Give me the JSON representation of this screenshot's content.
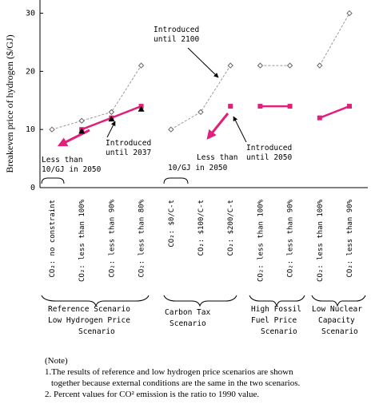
{
  "chart_data": {
    "type": "line",
    "y_label": "Breakeven price of hydrogen ($/GJ)",
    "ylim": [
      0,
      32
    ],
    "yticks": [
      0,
      10,
      20,
      30
    ],
    "categories": [
      "CO₂: no constraint",
      "CO₂: less than 100%",
      "CO₂: less than 90%",
      "CO₂: less than 80%",
      "CO₂: $0/C-t",
      "CO₂: $100/C-t",
      "CO₂: $200/C-t",
      "CO₂: less than 100%",
      "CO₂: less than 90%",
      "CO₂: less than 100%",
      "CO₂: less than 90%"
    ],
    "series": [
      {
        "color": "#999999",
        "style": "dashed",
        "marker": "diamond",
        "values": [
          10,
          11.5,
          13,
          21,
          null,
          null,
          null,
          null,
          null,
          null,
          null
        ]
      },
      {
        "color": "#999999",
        "style": "dashed",
        "marker": "diamond",
        "values": [
          null,
          null,
          null,
          null,
          10,
          13,
          21,
          null,
          null,
          null,
          null
        ]
      },
      {
        "color": "#999999",
        "style": "dashed",
        "marker": "diamond",
        "values": [
          null,
          null,
          null,
          null,
          null,
          null,
          null,
          21,
          21,
          null,
          null
        ]
      },
      {
        "color": "#999999",
        "style": "dashed",
        "marker": "diamond",
        "values": [
          null,
          null,
          null,
          null,
          null,
          null,
          null,
          null,
          null,
          21,
          30
        ]
      },
      {
        "color": "#e0207a",
        "style": "solid",
        "marker": "square",
        "values": [
          null,
          10,
          12,
          14,
          null,
          null,
          null,
          null,
          null,
          null,
          null
        ]
      },
      {
        "color": "#000000",
        "style": "none",
        "marker": "triangle",
        "values": [
          null,
          9.7,
          11.8,
          13.5,
          null,
          null,
          null,
          null,
          null,
          null,
          null
        ]
      },
      {
        "color": "#e0207a",
        "style": "solid",
        "marker": "square",
        "values": [
          null,
          null,
          null,
          null,
          null,
          null,
          14,
          null,
          null,
          null,
          null
        ]
      },
      {
        "color": "#e0207a",
        "style": "solid",
        "marker": "square",
        "values": [
          null,
          null,
          null,
          null,
          null,
          null,
          null,
          14,
          14,
          null,
          null
        ]
      },
      {
        "color": "#e0207a",
        "style": "solid",
        "marker": "square",
        "values": [
          null,
          null,
          null,
          null,
          null,
          null,
          null,
          null,
          null,
          12,
          14
        ]
      }
    ],
    "annotations": [
      [
        "Introduced",
        "until 2100"
      ],
      [
        "Introduced",
        "until 2037"
      ],
      [
        "Introduced",
        "until 2050"
      ],
      [
        "Less than",
        "10/GJ in 2050"
      ],
      [
        "Less than",
        "10/GJ in 2050"
      ]
    ],
    "groups": [
      [
        "Reference Scenario",
        "Low Hydrogen Price",
        "Scenario"
      ],
      [
        "Carbon Tax",
        "Scenario"
      ],
      [
        "High Fossil",
        "Fuel Price",
        "Scenario"
      ],
      [
        "Low Nuclear",
        "Capacity",
        "Scenario"
      ]
    ],
    "note": {
      "heading": "(Note)",
      "lines": [
        "1.The results of reference and low hydrogen price scenarios are shown",
        "together because external conditions are the same in the two scenarios.",
        "2. Percent values for CO² emission is the ratio to 1990 value."
      ]
    }
  }
}
